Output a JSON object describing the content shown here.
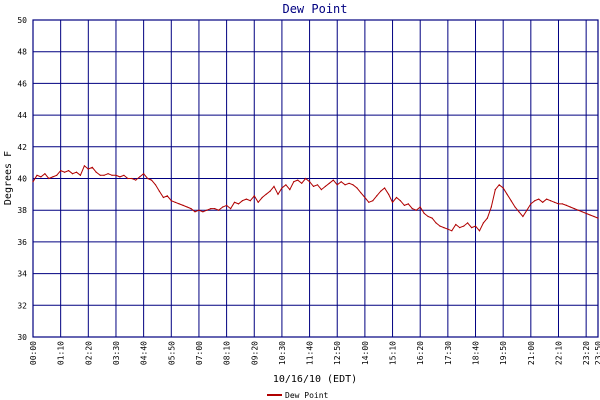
{
  "chart_data": {
    "type": "line",
    "title": "Dew Point",
    "xlabel": "10/16/10 (EDT)",
    "ylabel": "Degrees F",
    "ylim": [
      30,
      50
    ],
    "y_ticks": [
      30,
      32,
      34,
      36,
      38,
      40,
      42,
      44,
      46,
      48,
      50
    ],
    "x_ticks": [
      "00:00",
      "01:10",
      "02:20",
      "03:30",
      "04:40",
      "05:50",
      "07:00",
      "08:10",
      "09:20",
      "10:30",
      "11:40",
      "12:50",
      "14:00",
      "15:10",
      "16:20",
      "17:30",
      "18:40",
      "19:50",
      "21:00",
      "22:10",
      "23:20",
      "23:50"
    ],
    "grid": true,
    "legend_placement": "bottom-center",
    "series": [
      {
        "name": "Dew Point",
        "color": "#b00000",
        "x": [
          "00:00",
          "00:10",
          "00:20",
          "00:30",
          "00:40",
          "00:50",
          "01:00",
          "01:10",
          "01:20",
          "01:30",
          "01:40",
          "01:50",
          "02:00",
          "02:10",
          "02:20",
          "02:30",
          "02:40",
          "02:50",
          "03:00",
          "03:10",
          "03:20",
          "03:30",
          "03:40",
          "03:50",
          "04:00",
          "04:10",
          "04:20",
          "04:30",
          "04:40",
          "04:50",
          "05:00",
          "05:10",
          "05:20",
          "05:30",
          "05:40",
          "05:50",
          "06:00",
          "06:10",
          "06:20",
          "06:30",
          "06:40",
          "06:50",
          "07:00",
          "07:10",
          "07:20",
          "07:30",
          "07:40",
          "07:50",
          "08:00",
          "08:10",
          "08:20",
          "08:30",
          "08:40",
          "08:50",
          "09:00",
          "09:10",
          "09:20",
          "09:30",
          "09:40",
          "09:50",
          "10:00",
          "10:10",
          "10:20",
          "10:30",
          "10:40",
          "10:50",
          "11:00",
          "11:10",
          "11:20",
          "11:30",
          "11:40",
          "11:50",
          "12:00",
          "12:10",
          "12:20",
          "12:30",
          "12:40",
          "12:50",
          "13:00",
          "13:10",
          "13:20",
          "13:30",
          "13:40",
          "13:50",
          "14:00",
          "14:10",
          "14:20",
          "14:30",
          "14:40",
          "14:50",
          "15:00",
          "15:10",
          "15:20",
          "15:30",
          "15:40",
          "15:50",
          "16:00",
          "16:10",
          "16:20",
          "16:30",
          "16:40",
          "16:50",
          "17:00",
          "17:10",
          "17:20",
          "17:30",
          "17:40",
          "17:50",
          "18:00",
          "18:10",
          "18:20",
          "18:30",
          "18:40",
          "18:50",
          "19:00",
          "19:10",
          "19:20",
          "19:30",
          "19:40",
          "19:50",
          "20:00",
          "20:10",
          "20:20",
          "20:30",
          "20:40",
          "20:50",
          "21:00",
          "21:10",
          "21:20",
          "21:30",
          "21:40",
          "21:50",
          "22:00",
          "22:10",
          "22:20",
          "22:30",
          "22:40",
          "22:50",
          "23:00",
          "23:10",
          "23:20",
          "23:30",
          "23:40",
          "23:50"
        ],
        "values": [
          39.8,
          40.2,
          40.1,
          40.3,
          40.0,
          40.1,
          40.2,
          40.5,
          40.4,
          40.5,
          40.3,
          40.4,
          40.2,
          40.8,
          40.6,
          40.7,
          40.4,
          40.2,
          40.2,
          40.3,
          40.2,
          40.2,
          40.1,
          40.2,
          40.0,
          40.0,
          39.9,
          40.1,
          40.3,
          40.0,
          39.9,
          39.6,
          39.2,
          38.8,
          38.9,
          38.6,
          38.5,
          38.4,
          38.3,
          38.2,
          38.1,
          37.9,
          38.0,
          37.9,
          38.0,
          38.1,
          38.1,
          38.0,
          38.2,
          38.3,
          38.1,
          38.5,
          38.4,
          38.6,
          38.7,
          38.6,
          38.9,
          38.5,
          38.8,
          39.0,
          39.2,
          39.5,
          39.0,
          39.4,
          39.6,
          39.3,
          39.8,
          39.9,
          39.7,
          40.0,
          39.8,
          39.5,
          39.6,
          39.3,
          39.5,
          39.7,
          39.9,
          39.6,
          39.8,
          39.6,
          39.7,
          39.6,
          39.4,
          39.1,
          38.8,
          38.5,
          38.6,
          38.9,
          39.2,
          39.4,
          39.0,
          38.5,
          38.8,
          38.6,
          38.3,
          38.4,
          38.1,
          38.0,
          38.2,
          37.8,
          37.6,
          37.5,
          37.2,
          37.0,
          36.9,
          36.8,
          36.7,
          37.1,
          36.9,
          37.0,
          37.2,
          36.9,
          37.0,
          36.7,
          37.2,
          37.5,
          38.2,
          39.3,
          39.6,
          39.4,
          39.0,
          38.6,
          38.2,
          37.9,
          37.6,
          38.0,
          38.4,
          38.6,
          38.7,
          38.5,
          38.7,
          38.6,
          38.5,
          38.4,
          38.4,
          38.3,
          38.2,
          38.1,
          38.0,
          37.9,
          37.8,
          37.7,
          37.6,
          37.5
        ]
      }
    ]
  }
}
